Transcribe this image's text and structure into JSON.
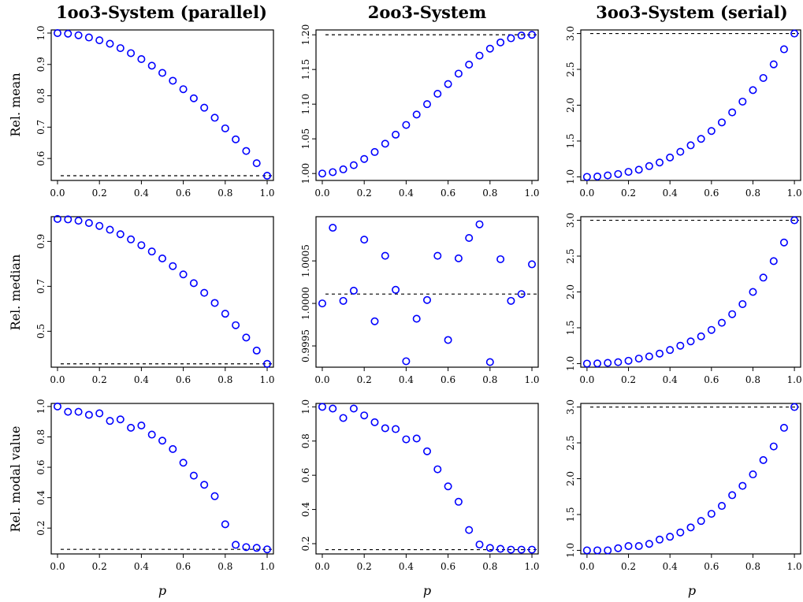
{
  "column_titles": [
    "1oo3-System (parallel)",
    "2oo3-System",
    "3oo3-System (serial)"
  ],
  "row_labels": [
    "Rel. mean",
    "Rel. median",
    "Rel. modal value"
  ],
  "x_axis_label": "p",
  "colors": {
    "points": "#0000ff",
    "axes": "#000000",
    "reference": "#000000"
  },
  "chart_data": [
    {
      "type": "scatter",
      "row": 0,
      "col": 0,
      "x": [
        0,
        0.05,
        0.1,
        0.15,
        0.2,
        0.25,
        0.3,
        0.35,
        0.4,
        0.45,
        0.5,
        0.55,
        0.6,
        0.65,
        0.7,
        0.75,
        0.8,
        0.85,
        0.9,
        0.95,
        1.0
      ],
      "y": [
        1.0,
        0.998,
        0.993,
        0.986,
        0.977,
        0.966,
        0.952,
        0.936,
        0.917,
        0.896,
        0.873,
        0.848,
        0.821,
        0.792,
        0.762,
        0.73,
        0.696,
        0.661,
        0.624,
        0.585,
        0.545
      ],
      "xlim": [
        -0.03,
        1.03
      ],
      "ylim": [
        0.53,
        1.01
      ],
      "xticks": [
        0,
        0.2,
        0.4,
        0.6,
        0.8,
        1.0
      ],
      "xtick_labels": [
        "0.0",
        "0.2",
        "0.4",
        "0.6",
        "0.8",
        "1.0"
      ],
      "yticks": [
        0.6,
        0.7,
        0.8,
        0.9,
        1.0
      ],
      "ytick_labels": [
        "0.6",
        "0.7",
        "0.8",
        "0.9",
        "1.0"
      ],
      "reference_line": 0.545
    },
    {
      "type": "scatter",
      "row": 0,
      "col": 1,
      "x": [
        0,
        0.05,
        0.1,
        0.15,
        0.2,
        0.25,
        0.3,
        0.35,
        0.4,
        0.45,
        0.5,
        0.55,
        0.6,
        0.65,
        0.7,
        0.75,
        0.8,
        0.85,
        0.9,
        0.95,
        1.0
      ],
      "y": [
        1.0,
        1.002,
        1.006,
        1.012,
        1.021,
        1.031,
        1.043,
        1.056,
        1.07,
        1.085,
        1.1,
        1.115,
        1.129,
        1.144,
        1.157,
        1.17,
        1.18,
        1.189,
        1.195,
        1.199,
        1.2
      ],
      "xlim": [
        -0.03,
        1.03
      ],
      "ylim": [
        0.99,
        1.207
      ],
      "xticks": [
        0,
        0.2,
        0.4,
        0.6,
        0.8,
        1.0
      ],
      "xtick_labels": [
        "0.0",
        "0.2",
        "0.4",
        "0.6",
        "0.8",
        "1.0"
      ],
      "yticks": [
        1.0,
        1.05,
        1.1,
        1.15,
        1.2
      ],
      "ytick_labels": [
        "1.00",
        "1.05",
        "1.10",
        "1.15",
        "1.20"
      ],
      "reference_line": 1.2
    },
    {
      "type": "scatter",
      "row": 0,
      "col": 2,
      "x": [
        0,
        0.05,
        0.1,
        0.15,
        0.2,
        0.25,
        0.3,
        0.35,
        0.4,
        0.45,
        0.5,
        0.55,
        0.6,
        0.65,
        0.7,
        0.75,
        0.8,
        0.85,
        0.9,
        0.95,
        1.0
      ],
      "y": [
        1.0,
        1.005,
        1.02,
        1.04,
        1.07,
        1.1,
        1.15,
        1.2,
        1.27,
        1.35,
        1.44,
        1.53,
        1.64,
        1.76,
        1.9,
        2.05,
        2.21,
        2.38,
        2.57,
        2.78,
        3.0
      ],
      "xlim": [
        -0.03,
        1.03
      ],
      "ylim": [
        0.95,
        3.05
      ],
      "xticks": [
        0,
        0.2,
        0.4,
        0.6,
        0.8,
        1.0
      ],
      "xtick_labels": [
        "0.0",
        "0.2",
        "0.4",
        "0.6",
        "0.8",
        "1.0"
      ],
      "yticks": [
        1.0,
        1.5,
        2.0,
        2.5,
        3.0
      ],
      "ytick_labels": [
        "1.0",
        "1.5",
        "2.0",
        "2.5",
        "3.0"
      ],
      "reference_line": 3.0
    },
    {
      "type": "scatter",
      "row": 1,
      "col": 0,
      "x": [
        0,
        0.05,
        0.1,
        0.15,
        0.2,
        0.25,
        0.3,
        0.35,
        0.4,
        0.45,
        0.5,
        0.55,
        0.6,
        0.65,
        0.7,
        0.75,
        0.8,
        0.85,
        0.9,
        0.95,
        1.0
      ],
      "y": [
        1.0,
        0.998,
        0.992,
        0.982,
        0.969,
        0.952,
        0.932,
        0.909,
        0.883,
        0.855,
        0.824,
        0.79,
        0.753,
        0.714,
        0.671,
        0.626,
        0.578,
        0.527,
        0.472,
        0.414,
        0.355
      ],
      "xlim": [
        -0.03,
        1.03
      ],
      "ylim": [
        0.34,
        1.01
      ],
      "xticks": [
        0,
        0.2,
        0.4,
        0.6,
        0.8,
        1.0
      ],
      "xtick_labels": [
        "0.0",
        "0.2",
        "0.4",
        "0.6",
        "0.8",
        "1.0"
      ],
      "yticks": [
        0.5,
        0.7,
        0.9
      ],
      "ytick_labels": [
        "0.5",
        "0.7",
        "0.9"
      ],
      "reference_line": 0.355
    },
    {
      "type": "scatter",
      "row": 1,
      "col": 1,
      "x": [
        0,
        0.05,
        0.1,
        0.15,
        0.2,
        0.25,
        0.3,
        0.35,
        0.4,
        0.45,
        0.5,
        0.55,
        0.6,
        0.65,
        0.7,
        0.75,
        0.8,
        0.85,
        0.9,
        0.95,
        1.0
      ],
      "y": [
        1.0,
        1.00089,
        1.00003,
        1.00015,
        1.00075,
        0.99979,
        1.00056,
        1.00016,
        0.99932,
        0.99982,
        1.00004,
        1.00056,
        0.99957,
        1.00053,
        1.00077,
        1.00093,
        0.99931,
        1.00052,
        1.00003,
        1.00011,
        1.00046
      ],
      "xlim": [
        -0.03,
        1.03
      ],
      "ylim": [
        0.99925,
        1.00102
      ],
      "xticks": [
        0,
        0.2,
        0.4,
        0.6,
        0.8,
        1.0
      ],
      "xtick_labels": [
        "0.0",
        "0.2",
        "0.4",
        "0.6",
        "0.8",
        "1.0"
      ],
      "yticks": [
        0.9995,
        1.0,
        1.0005
      ],
      "ytick_labels": [
        "0.9995",
        "1.0000",
        "1.0005"
      ],
      "reference_line": 1.00011
    },
    {
      "type": "scatter",
      "row": 1,
      "col": 2,
      "x": [
        0,
        0.05,
        0.1,
        0.15,
        0.2,
        0.25,
        0.3,
        0.35,
        0.4,
        0.45,
        0.5,
        0.55,
        0.6,
        0.65,
        0.7,
        0.75,
        0.8,
        0.85,
        0.9,
        0.95,
        1.0
      ],
      "y": [
        1.0,
        1.002,
        1.01,
        1.02,
        1.04,
        1.07,
        1.1,
        1.14,
        1.19,
        1.25,
        1.31,
        1.38,
        1.47,
        1.57,
        1.69,
        1.83,
        2.0,
        2.2,
        2.43,
        2.69,
        3.0
      ],
      "xlim": [
        -0.03,
        1.03
      ],
      "ylim": [
        0.95,
        3.05
      ],
      "xticks": [
        0,
        0.2,
        0.4,
        0.6,
        0.8,
        1.0
      ],
      "xtick_labels": [
        "0.0",
        "0.2",
        "0.4",
        "0.6",
        "0.8",
        "1.0"
      ],
      "yticks": [
        1.0,
        1.5,
        2.0,
        2.5,
        3.0
      ],
      "ytick_labels": [
        "1.0",
        "1.5",
        "2.0",
        "2.5",
        "3.0"
      ],
      "reference_line": 3.0
    },
    {
      "type": "scatter",
      "row": 2,
      "col": 0,
      "x": [
        0,
        0.05,
        0.1,
        0.15,
        0.2,
        0.25,
        0.3,
        0.35,
        0.4,
        0.45,
        0.5,
        0.55,
        0.6,
        0.65,
        0.7,
        0.75,
        0.8,
        0.85,
        0.9,
        0.95,
        1.0
      ],
      "y": [
        1.0,
        0.965,
        0.965,
        0.945,
        0.955,
        0.905,
        0.915,
        0.86,
        0.875,
        0.815,
        0.775,
        0.72,
        0.63,
        0.545,
        0.485,
        0.41,
        0.225,
        0.09,
        0.075,
        0.07,
        0.06
      ],
      "xlim": [
        -0.03,
        1.03
      ],
      "ylim": [
        0.03,
        1.02
      ],
      "xticks": [
        0,
        0.2,
        0.4,
        0.6,
        0.8,
        1.0
      ],
      "xtick_labels": [
        "0.0",
        "0.2",
        "0.4",
        "0.6",
        "0.8",
        "1.0"
      ],
      "yticks": [
        0.2,
        0.4,
        0.6,
        0.8,
        1.0
      ],
      "ytick_labels": [
        "0.2",
        "0.4",
        "0.6",
        "0.8",
        "1.0"
      ],
      "reference_line": 0.06
    },
    {
      "type": "scatter",
      "row": 2,
      "col": 1,
      "x": [
        0,
        0.05,
        0.1,
        0.15,
        0.2,
        0.25,
        0.3,
        0.35,
        0.4,
        0.45,
        0.5,
        0.55,
        0.6,
        0.65,
        0.7,
        0.75,
        0.8,
        0.85,
        0.9,
        0.95,
        1.0
      ],
      "y": [
        1.0,
        0.99,
        0.935,
        0.99,
        0.95,
        0.91,
        0.875,
        0.87,
        0.81,
        0.815,
        0.74,
        0.635,
        0.535,
        0.445,
        0.28,
        0.195,
        0.175,
        0.17,
        0.165,
        0.165,
        0.165
      ],
      "xlim": [
        -0.03,
        1.03
      ],
      "ylim": [
        0.14,
        1.02
      ],
      "xticks": [
        0,
        0.2,
        0.4,
        0.6,
        0.8,
        1.0
      ],
      "xtick_labels": [
        "0.0",
        "0.2",
        "0.4",
        "0.6",
        "0.8",
        "1.0"
      ],
      "yticks": [
        0.2,
        0.4,
        0.6,
        0.8,
        1.0
      ],
      "ytick_labels": [
        "0.2",
        "0.4",
        "0.6",
        "0.8",
        "1.0"
      ],
      "reference_line": 0.165
    },
    {
      "type": "scatter",
      "row": 2,
      "col": 2,
      "x": [
        0,
        0.05,
        0.1,
        0.15,
        0.2,
        0.25,
        0.3,
        0.35,
        0.4,
        0.45,
        0.5,
        0.55,
        0.6,
        0.65,
        0.7,
        0.75,
        0.8,
        0.85,
        0.9,
        0.95,
        1.0
      ],
      "y": [
        1.0,
        1.0,
        1.0,
        1.03,
        1.06,
        1.06,
        1.09,
        1.15,
        1.19,
        1.25,
        1.32,
        1.41,
        1.51,
        1.62,
        1.77,
        1.9,
        2.06,
        2.26,
        2.45,
        2.71,
        3.0
      ],
      "xlim": [
        -0.03,
        1.03
      ],
      "ylim": [
        0.95,
        3.05
      ],
      "xticks": [
        0,
        0.2,
        0.4,
        0.6,
        0.8,
        1.0
      ],
      "xtick_labels": [
        "0.0",
        "0.2",
        "0.4",
        "0.6",
        "0.8",
        "1.0"
      ],
      "yticks": [
        1.0,
        1.5,
        2.0,
        2.5,
        3.0
      ],
      "ytick_labels": [
        "1.0",
        "1.5",
        "2.0",
        "2.5",
        "3.0"
      ],
      "reference_line": 3.0
    }
  ]
}
